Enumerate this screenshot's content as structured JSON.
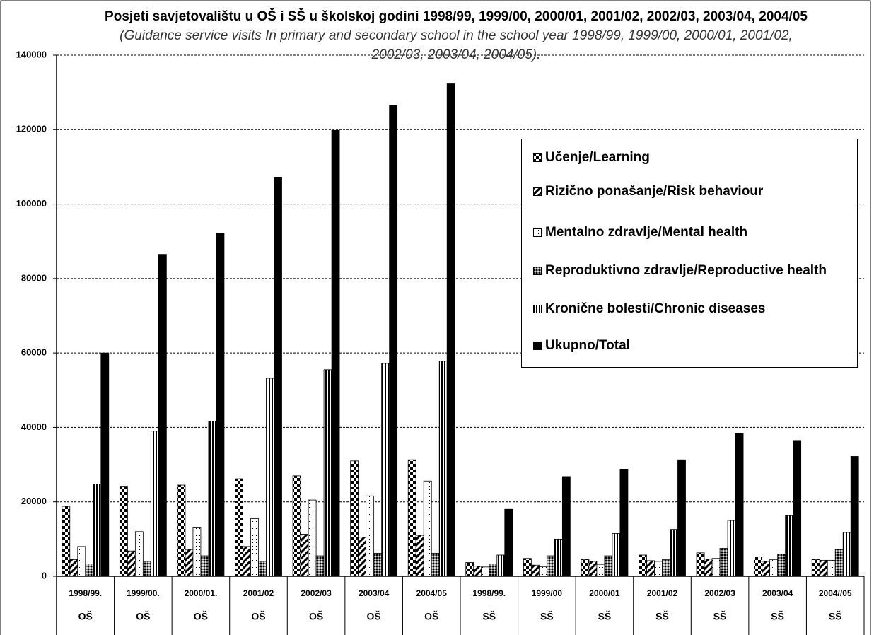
{
  "chart_data": {
    "type": "bar",
    "title": "Posjeti savjetovalištu u OŠ i SŠ u školskoj godini 1998/99, 1999/00, 2000/01, 2001/02, 2002/03, 2003/04, 2004/05",
    "subtitle": "(Guidance service visits In primary and secondary school in the school year 1998/99, 1999/00, 2000/01, 2001/02, 2002/03, 2003/04, 2004/05).",
    "categories": [
      "1998/99.",
      "1999/00.",
      "2000/01.",
      "2001/02",
      "2002/03",
      "2003/04",
      "2004/05",
      "1998/99.",
      "1999/00",
      "2000/01",
      "2001/02",
      "2002/03",
      "2003/04",
      "2004//05"
    ],
    "category_groups": [
      "OŠ",
      "OŠ",
      "OŠ",
      "OŠ",
      "OŠ",
      "OŠ",
      "OŠ",
      "SŠ",
      "SŠ",
      "SŠ",
      "SŠ",
      "SŠ",
      "SŠ",
      "SŠ"
    ],
    "series": [
      {
        "name": "Učenje/Learning",
        "color": "#000000",
        "pattern": "checker",
        "values": [
          18800,
          24200,
          24500,
          26200,
          27000,
          31000,
          31300,
          3700,
          4800,
          4500,
          5700,
          6300,
          5200,
          4500
        ]
      },
      {
        "name": "Rizično ponašanje/Risk behaviour",
        "color": "#000000",
        "pattern": "diagonal",
        "values": [
          4500,
          6800,
          7200,
          8000,
          11300,
          10500,
          11000,
          2700,
          3000,
          4000,
          4200,
          4600,
          4000,
          4300
        ]
      },
      {
        "name": "Mentalno zdravlje/Mental health",
        "color": "#000000",
        "pattern": "dots",
        "values": [
          8000,
          12000,
          13200,
          15500,
          20500,
          21600,
          25600,
          2500,
          2600,
          3200,
          4000,
          4800,
          4500,
          4300
        ]
      },
      {
        "name": "Reproduktivno zdravlje/Reproductive health",
        "color": "#000000",
        "pattern": "crosshatch",
        "values": [
          3300,
          4000,
          5500,
          4000,
          5500,
          6200,
          6200,
          3300,
          5500,
          5500,
          4500,
          7500,
          6000,
          7200
        ]
      },
      {
        "name": "Kronične bolesti/Chronic diseases",
        "color": "#000000",
        "pattern": "vertical",
        "values": [
          24800,
          39000,
          41700,
          53200,
          55500,
          57200,
          57800,
          5700,
          10000,
          11500,
          12600,
          15000,
          16300,
          11800
        ]
      },
      {
        "name": "Ukupno/Total",
        "color": "#000000",
        "pattern": "solid",
        "values": [
          60000,
          86500,
          92200,
          107200,
          119800,
          126500,
          132300,
          18000,
          26800,
          28800,
          31300,
          38300,
          36500,
          32200
        ]
      }
    ],
    "ylim": [
      0,
      140000
    ],
    "yticks": [
      0,
      20000,
      40000,
      60000,
      80000,
      100000,
      120000,
      140000
    ],
    "grid": true,
    "legend": "right"
  }
}
